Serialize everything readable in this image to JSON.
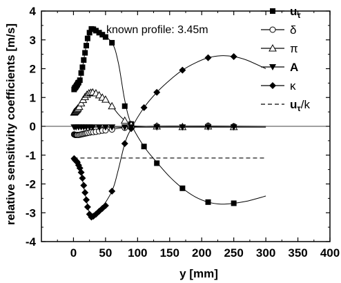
{
  "chart_data": {
    "type": "line",
    "title": "",
    "annotation": "known profile:  3.45m",
    "xlabel": "y [mm]",
    "ylabel": "relative sensitivity coefficients [m/s]",
    "xlim": [
      -50,
      400
    ],
    "ylim": [
      -4,
      4
    ],
    "x_ticks": [
      0,
      50,
      100,
      150,
      200,
      250,
      300,
      350,
      400
    ],
    "y_ticks": [
      -4,
      -3,
      -2,
      -1,
      0,
      1,
      2,
      3,
      4
    ],
    "legend_position": "right",
    "series": [
      {
        "name": "u_τ",
        "legend_main": "u",
        "legend_sub": "τ",
        "marker": "square-filled",
        "points": [
          [
            1,
            1.28
          ],
          [
            2,
            1.33
          ],
          [
            3,
            1.35
          ],
          [
            4,
            1.38
          ],
          [
            5,
            1.42
          ],
          [
            6,
            1.45
          ],
          [
            7,
            1.5
          ],
          [
            8,
            1.52
          ],
          [
            10,
            1.6
          ],
          [
            12,
            1.85
          ],
          [
            14,
            2.05
          ],
          [
            16,
            2.3
          ],
          [
            18,
            2.55
          ],
          [
            20,
            2.8
          ],
          [
            22,
            3.05
          ],
          [
            25,
            3.25
          ],
          [
            28,
            3.38
          ],
          [
            31,
            3.37
          ],
          [
            35,
            3.32
          ],
          [
            40,
            3.25
          ],
          [
            45,
            3.18
          ],
          [
            50,
            3.1
          ],
          [
            60,
            2.9
          ],
          [
            80,
            0.7
          ],
          [
            90,
            0.08
          ],
          [
            110,
            -0.7
          ],
          [
            130,
            -1.28
          ],
          [
            170,
            -2.15
          ],
          [
            210,
            -2.63
          ],
          [
            250,
            -2.67
          ]
        ],
        "curve": [
          [
            0,
            1.25
          ],
          [
            10,
            1.6
          ],
          [
            20,
            2.8
          ],
          [
            28,
            3.38
          ],
          [
            40,
            3.25
          ],
          [
            60,
            2.9
          ],
          [
            70,
            2.2
          ],
          [
            80,
            0.9
          ],
          [
            90,
            0.08
          ],
          [
            110,
            -0.7
          ],
          [
            130,
            -1.25
          ],
          [
            150,
            -1.75
          ],
          [
            170,
            -2.15
          ],
          [
            190,
            -2.45
          ],
          [
            210,
            -2.63
          ],
          [
            230,
            -2.7
          ],
          [
            250,
            -2.67
          ],
          [
            270,
            -2.6
          ],
          [
            300,
            -2.42
          ]
        ]
      },
      {
        "name": "δ",
        "legend_main": "δ",
        "marker": "circle-open",
        "points": [
          [
            1,
            -0.28
          ],
          [
            2,
            -0.29
          ],
          [
            3,
            -0.3
          ],
          [
            4,
            -0.3
          ],
          [
            5,
            -0.3
          ],
          [
            6,
            -0.3
          ],
          [
            8,
            -0.3
          ],
          [
            10,
            -0.29
          ],
          [
            12,
            -0.28
          ],
          [
            14,
            -0.27
          ],
          [
            16,
            -0.26
          ],
          [
            18,
            -0.25
          ],
          [
            20,
            -0.24
          ],
          [
            22,
            -0.23
          ],
          [
            25,
            -0.22
          ],
          [
            28,
            -0.2
          ],
          [
            31,
            -0.2
          ],
          [
            35,
            -0.19
          ],
          [
            40,
            -0.17
          ],
          [
            45,
            -0.15
          ],
          [
            50,
            -0.14
          ],
          [
            60,
            -0.11
          ],
          [
            80,
            -0.05
          ],
          [
            90,
            -0.02
          ],
          [
            130,
            0.0
          ],
          [
            210,
            0.02
          ],
          [
            250,
            0.0
          ]
        ],
        "curve": [
          [
            0,
            -0.28
          ],
          [
            20,
            -0.24
          ],
          [
            50,
            -0.14
          ],
          [
            90,
            -0.02
          ],
          [
            150,
            0.01
          ],
          [
            300,
            0.0
          ]
        ]
      },
      {
        "name": "π",
        "legend_main": "π",
        "marker": "triangle-up-open",
        "points": [
          [
            1,
            0.48
          ],
          [
            2,
            0.5
          ],
          [
            3,
            0.52
          ],
          [
            4,
            0.55
          ],
          [
            5,
            0.57
          ],
          [
            6,
            0.6
          ],
          [
            7,
            0.63
          ],
          [
            9,
            0.68
          ],
          [
            12,
            0.8
          ],
          [
            15,
            0.92
          ],
          [
            18,
            1.02
          ],
          [
            21,
            1.1
          ],
          [
            24,
            1.15
          ],
          [
            27,
            1.17
          ],
          [
            30,
            1.18
          ],
          [
            35,
            1.15
          ],
          [
            40,
            1.08
          ],
          [
            45,
            1.0
          ],
          [
            50,
            0.93
          ],
          [
            60,
            0.7
          ],
          [
            80,
            0.2
          ],
          [
            90,
            0.05
          ],
          [
            130,
            0.0
          ],
          [
            170,
            -0.02
          ],
          [
            210,
            0.0
          ],
          [
            250,
            -0.02
          ]
        ],
        "curve": [
          [
            0,
            0.46
          ],
          [
            10,
            0.72
          ],
          [
            20,
            1.08
          ],
          [
            28,
            1.18
          ],
          [
            40,
            1.08
          ],
          [
            50,
            0.93
          ],
          [
            60,
            0.7
          ],
          [
            70,
            0.42
          ],
          [
            80,
            0.2
          ],
          [
            90,
            0.05
          ],
          [
            120,
            0.0
          ],
          [
            300,
            0.0
          ]
        ]
      },
      {
        "name": "A",
        "legend_main": "A",
        "marker": "triangle-down-filled",
        "points": [
          [
            1,
            -0.03
          ],
          [
            4,
            -0.03
          ],
          [
            8,
            -0.03
          ],
          [
            12,
            -0.03
          ],
          [
            16,
            -0.03
          ],
          [
            20,
            -0.03
          ],
          [
            25,
            -0.03
          ],
          [
            30,
            -0.03
          ],
          [
            40,
            -0.03
          ],
          [
            50,
            -0.03
          ],
          [
            60,
            -0.03
          ],
          [
            80,
            -0.03
          ],
          [
            90,
            -0.03
          ],
          [
            130,
            -0.03
          ],
          [
            170,
            -0.03
          ],
          [
            210,
            -0.03
          ],
          [
            250,
            -0.03
          ]
        ],
        "curve": [
          [
            0,
            -0.03
          ],
          [
            300,
            -0.03
          ]
        ]
      },
      {
        "name": "κ",
        "legend_main": "κ",
        "marker": "diamond-filled",
        "points": [
          [
            1,
            -1.12
          ],
          [
            2,
            -1.15
          ],
          [
            3,
            -1.18
          ],
          [
            4,
            -1.2
          ],
          [
            5,
            -1.22
          ],
          [
            6,
            -1.25
          ],
          [
            8,
            -1.35
          ],
          [
            10,
            -1.45
          ],
          [
            12,
            -1.6
          ],
          [
            14,
            -1.8
          ],
          [
            16,
            -2.05
          ],
          [
            18,
            -2.3
          ],
          [
            20,
            -2.55
          ],
          [
            22,
            -2.8
          ],
          [
            25,
            -3.05
          ],
          [
            28,
            -3.15
          ],
          [
            31,
            -3.12
          ],
          [
            35,
            -3.05
          ],
          [
            40,
            -2.95
          ],
          [
            45,
            -2.85
          ],
          [
            50,
            -2.75
          ],
          [
            60,
            -2.25
          ],
          [
            80,
            -0.6
          ],
          [
            90,
            -0.08
          ],
          [
            110,
            0.65
          ],
          [
            130,
            1.18
          ],
          [
            170,
            1.95
          ],
          [
            210,
            2.38
          ],
          [
            250,
            2.42
          ]
        ],
        "curve": [
          [
            0,
            -1.1
          ],
          [
            10,
            -1.45
          ],
          [
            20,
            -2.55
          ],
          [
            28,
            -3.15
          ],
          [
            40,
            -2.95
          ],
          [
            60,
            -2.25
          ],
          [
            70,
            -1.5
          ],
          [
            80,
            -0.6
          ],
          [
            90,
            -0.08
          ],
          [
            110,
            0.65
          ],
          [
            130,
            1.18
          ],
          [
            150,
            1.6
          ],
          [
            170,
            1.95
          ],
          [
            190,
            2.2
          ],
          [
            210,
            2.38
          ],
          [
            230,
            2.45
          ],
          [
            250,
            2.42
          ],
          [
            270,
            2.3
          ],
          [
            300,
            2.0
          ]
        ]
      },
      {
        "name": "u_τ/k",
        "legend_main": "u",
        "legend_sub": "τ",
        "legend_suffix": "/k",
        "marker": "none",
        "linestyle": "dashed",
        "curve": [
          [
            0,
            -1.1
          ],
          [
            300,
            -1.1
          ]
        ]
      }
    ]
  }
}
